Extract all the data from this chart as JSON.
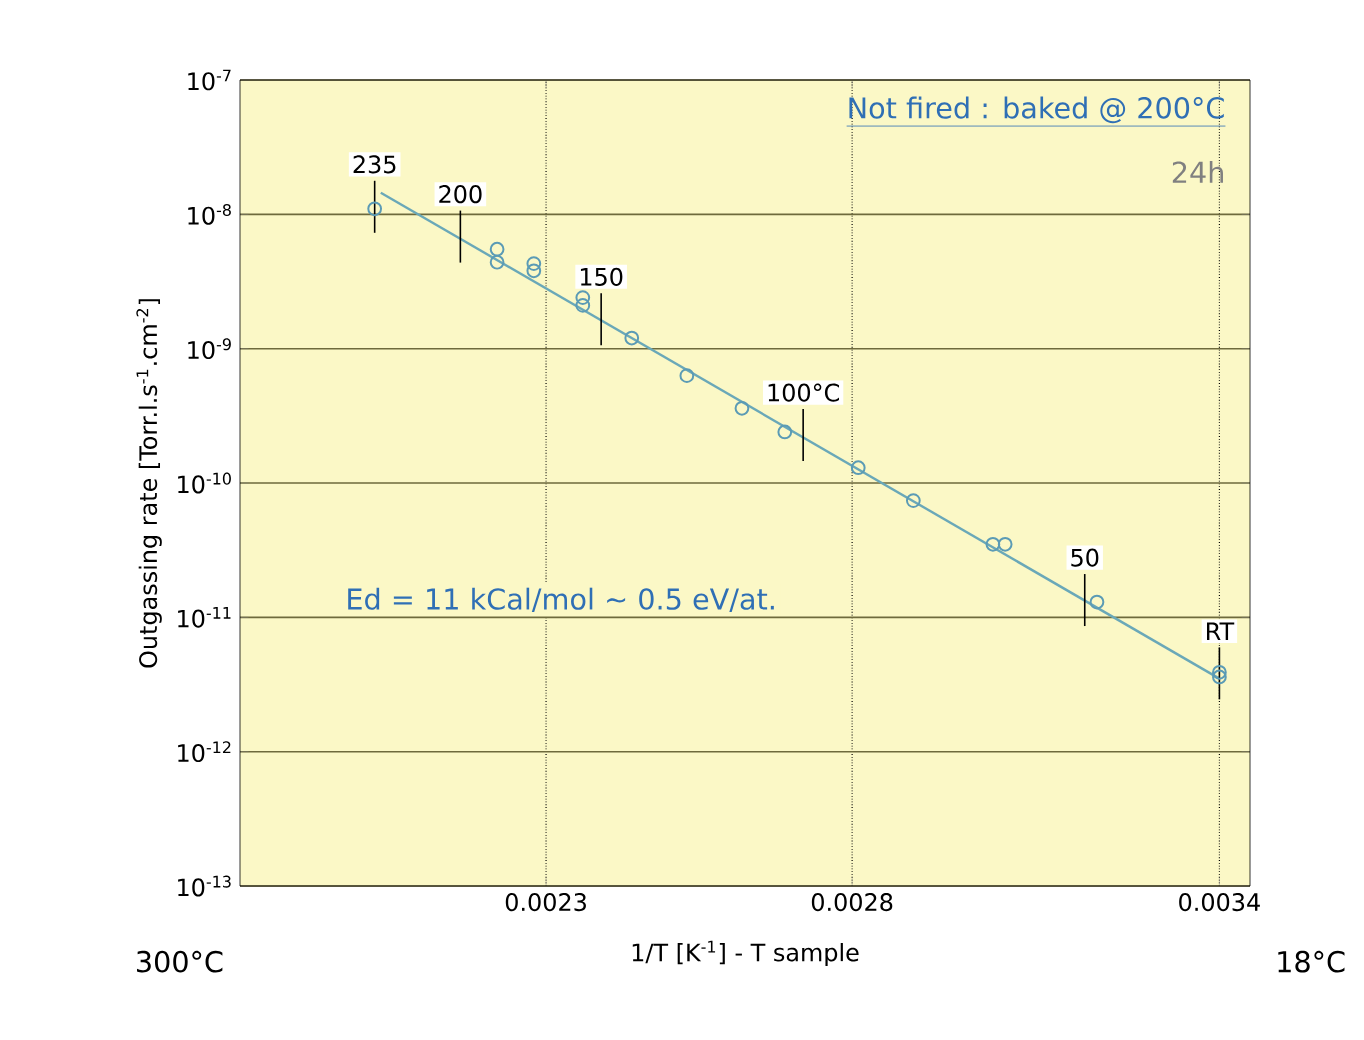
{
  "chart_data": {
    "type": "scatter",
    "xlabel": "1/T [K$^{-1}$] - T sample",
    "ylabel": "Outgassing rate [Torr.l.s$^{-1}$.cm$^{-2}$]",
    "log": "y",
    "grid": true,
    "marker": "circle",
    "xlim": [
      0.0018,
      0.00345
    ],
    "ylim": [
      1e-13,
      1e-07
    ],
    "xticks": [
      0.0023,
      0.0028,
      0.0034
    ],
    "yticks": [
      {
        "value": 1e-07,
        "label": "10$^{-7}$"
      },
      {
        "value": 1e-08,
        "label": "10$^{-8}$"
      },
      {
        "value": 1e-09,
        "label": "10$^{-9}$"
      },
      {
        "value": 1e-10,
        "label": "10$^{-10}$"
      },
      {
        "value": 1e-11,
        "label": "10$^{-11}$"
      },
      {
        "value": 1e-12,
        "label": "10$^{-12}$"
      },
      {
        "value": 1e-13,
        "label": "10$^{-13}$"
      }
    ],
    "series": [
      {
        "color": "#5b9bb5",
        "x": [
          0.00202,
          0.00222,
          0.00222,
          0.00228,
          0.00228,
          0.00236,
          0.00236,
          0.00244,
          0.00253,
          0.00262,
          0.00269,
          0.00281,
          0.0029,
          0.00303,
          0.00305,
          0.0032,
          0.0034,
          0.0034
        ],
        "values": [
          1.1e-08,
          5.5e-09,
          4.4e-09,
          4.3e-09,
          3.8e-09,
          2.4e-09,
          2.1e-09,
          1.2e-09,
          6.3e-10,
          3.6e-10,
          2.4e-10,
          1.3e-10,
          7.4e-11,
          3.5e-11,
          3.5e-11,
          1.3e-11,
          3.9e-12,
          3.6e-12
        ]
      },
      {
        "type": "line",
        "color": "#6aa8b8",
        "marker": "none",
        "x": [
          0.00203,
          0.0034
        ],
        "values": [
          1.45e-08,
          3.5e-12
        ]
      }
    ],
    "annotations": [
      {
        "text": "235",
        "x": 0.00202,
        "y": 1.1e-08
      },
      {
        "text": "200",
        "x": 0.00216,
        "y": 6.6e-09
      },
      {
        "text": "150",
        "x": 0.00239,
        "y": 1.6e-09
      },
      {
        "text": "100°C",
        "x": 0.00272,
        "y": 2.2e-10
      },
      {
        "text": "50",
        "x": 0.00318,
        "y": 1.3e-11
      },
      {
        "text": "RT",
        "x": 0.0034,
        "y": 3.7e-12
      },
      "Not fired : baked @ 200°C",
      "24h",
      "Ed = 11 kCal/mol ~ 0.5 eV/at.",
      "300°C",
      "18°C"
    ]
  }
}
